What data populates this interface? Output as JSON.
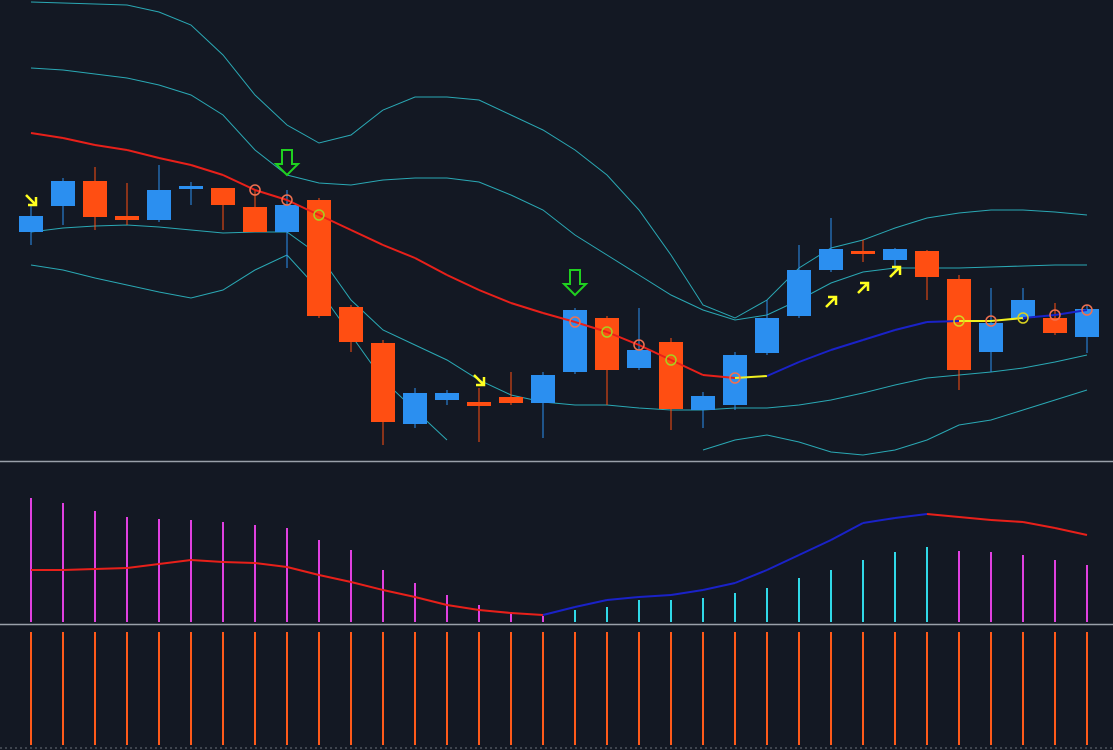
{
  "chart_data": {
    "type": "candlestick",
    "ylim": [
      0,
      460
    ],
    "up_color": "#2b8ff0",
    "down_color": "#ff4e12",
    "candles": [
      [
        228,
        255,
        215,
        244
      ],
      [
        254,
        282,
        235,
        279
      ],
      [
        279,
        293,
        230,
        243
      ],
      [
        244,
        277,
        235,
        240
      ],
      [
        240,
        295,
        238,
        270
      ],
      [
        271,
        278,
        255,
        274
      ],
      [
        272,
        272,
        230,
        255
      ],
      [
        253,
        270,
        228,
        228
      ],
      [
        228,
        270,
        192,
        255
      ],
      [
        260,
        262,
        142,
        144
      ],
      [
        153,
        155,
        108,
        118
      ],
      [
        117,
        120,
        15,
        38
      ],
      [
        36,
        72,
        32,
        67
      ],
      [
        60,
        70,
        55,
        67
      ],
      [
        58,
        72,
        18,
        54
      ],
      [
        63,
        88,
        55,
        57
      ],
      [
        57,
        88,
        22,
        85
      ],
      [
        88,
        152,
        86,
        150
      ],
      [
        142,
        144,
        55,
        90
      ],
      [
        92,
        152,
        90,
        110
      ],
      [
        118,
        122,
        30,
        51
      ],
      [
        50,
        68,
        32,
        64
      ],
      [
        55,
        108,
        50,
        105
      ],
      [
        107,
        160,
        105,
        142
      ],
      [
        144,
        215,
        142,
        190
      ],
      [
        190,
        242,
        188,
        211
      ],
      [
        209,
        220,
        198,
        206
      ],
      [
        200,
        212,
        188,
        211
      ],
      [
        209,
        210,
        160,
        183
      ],
      [
        181,
        185,
        70,
        90
      ],
      [
        108,
        172,
        88,
        137
      ],
      [
        142,
        172,
        140,
        160
      ],
      [
        142,
        157,
        125,
        127
      ],
      [
        123,
        155,
        107,
        151
      ]
    ],
    "bands": {
      "color": "#2aa8b4",
      "series": [
        {
          "values": [
            458,
            457,
            456,
            455,
            448,
            435,
            405,
            365,
            335,
            317,
            325,
            350,
            363,
            363,
            360,
            345,
            330,
            310,
            285,
            250,
            205,
            155,
            142,
            160,
            192,
            212,
            220,
            232,
            242,
            247,
            250,
            250,
            248,
            245
          ]
        },
        {
          "values": [
            392,
            390,
            386,
            382,
            375,
            365,
            345,
            310,
            285,
            277,
            275,
            280,
            282,
            282,
            278,
            265,
            250,
            225,
            205,
            185,
            165,
            150,
            140,
            145,
            160,
            177,
            188,
            192,
            192,
            192,
            193,
            194,
            195,
            195
          ]
        },
        {
          "values": [
            228,
            232,
            234,
            235,
            233,
            230,
            227,
            228,
            228,
            205,
            160,
            130,
            115,
            100,
            80,
            65,
            58,
            55,
            55,
            52,
            50,
            50,
            52,
            52,
            55,
            60,
            67,
            75,
            82,
            85,
            88,
            92,
            98,
            105
          ]
        },
        {
          "values": [
            195,
            190,
            182,
            175,
            168,
            162,
            170,
            190,
            205,
            170,
            125,
            80,
            50,
            20,
            null,
            null,
            null,
            null,
            null,
            null,
            null,
            10,
            20,
            25,
            18,
            8,
            5,
            10,
            20,
            35,
            40,
            50,
            60,
            70
          ]
        }
      ]
    },
    "ma": {
      "values": [
        327,
        322,
        315,
        310,
        302,
        295,
        285,
        270,
        260,
        245,
        230,
        215,
        202,
        185,
        170,
        157,
        147,
        138,
        128,
        115,
        100,
        85,
        82,
        84,
        98,
        110,
        120,
        130,
        138,
        139,
        139,
        142,
        145,
        150
      ],
      "segment_colors": [
        "#e8201a",
        "#e8201a",
        "#e8201a",
        "#e8201a",
        "#e8201a",
        "#e8201a",
        "#e8201a",
        "#e8201a",
        "#e8201a",
        "#e8201a",
        "#e8201a",
        "#e8201a",
        "#e8201a",
        "#e8201a",
        "#e8201a",
        "#e8201a",
        "#e8201a",
        "#e8201a",
        "#e8201a",
        "#e8201a",
        "#e8201a",
        "#e8201a",
        "#f0f020",
        "#1a22c8",
        "#1a22c8",
        "#1a22c8",
        "#1a22c8",
        "#1a22c8",
        "#1a22c8",
        "#f0f020",
        "#f0f020",
        "#1a22c8",
        "#1a22c8",
        "#1a22c8"
      ]
    },
    "circles": {
      "indices": [
        7,
        8,
        9,
        17,
        18,
        19,
        20,
        22,
        29,
        30,
        31,
        32,
        33
      ],
      "colors": [
        "#f07050",
        "#f07050",
        "#a8d020",
        "#f07050",
        "#a8d020",
        "#f07050",
        "#a8d020",
        "#f07050",
        "#d8d020",
        "#f07050",
        "#d8d020",
        "#f07050",
        "#f07050"
      ]
    },
    "down_arrows": {
      "color": "#20d020",
      "indices": [
        8,
        17
      ],
      "values": [
        285,
        165
      ]
    },
    "yellow_arrows": {
      "color": "#ffff20",
      "indices": [
        0,
        14,
        25,
        26,
        27
      ],
      "values": [
        260,
        80,
        158,
        172,
        188
      ]
    },
    "oscillator": {
      "ylim": [
        0,
        160
      ],
      "values": [
        124,
        119,
        111,
        105,
        103,
        102,
        100,
        97,
        94,
        82,
        72,
        52,
        39,
        27,
        17,
        10,
        6,
        12,
        15,
        22,
        22,
        24,
        29,
        34,
        44,
        52,
        62,
        70,
        75,
        71,
        70,
        67,
        62,
        57
      ],
      "colors": [
        "#e040e0",
        "#e040e0",
        "#e040e0",
        "#e040e0",
        "#e040e0",
        "#e040e0",
        "#e040e0",
        "#e040e0",
        "#e040e0",
        "#e040e0",
        "#e040e0",
        "#e040e0",
        "#e040e0",
        "#e040e0",
        "#e040e0",
        "#e040e0",
        "#e040e0",
        "#30d8e8",
        "#30d8e8",
        "#30d8e8",
        "#30d8e8",
        "#30d8e8",
        "#30d8e8",
        "#30d8e8",
        "#30d8e8",
        "#30d8e8",
        "#30d8e8",
        "#30d8e8",
        "#30d8e8",
        "#e040e0",
        "#e040e0",
        "#e040e0",
        "#e040e0",
        "#e040e0"
      ],
      "signal": [
        52,
        52,
        53,
        54,
        58,
        62,
        60,
        59,
        55,
        47,
        40,
        32,
        25,
        17,
        12,
        9,
        7,
        15,
        22,
        25,
        27,
        32,
        39,
        52,
        67,
        82,
        99,
        104,
        108,
        105,
        102,
        100,
        94,
        87
      ],
      "signal_colors": [
        "#e8201a",
        "#e8201a",
        "#e8201a",
        "#e8201a",
        "#e8201a",
        "#e8201a",
        "#e8201a",
        "#e8201a",
        "#e8201a",
        "#e8201a",
        "#e8201a",
        "#e8201a",
        "#e8201a",
        "#e8201a",
        "#e8201a",
        "#e8201a",
        "#1a22c8",
        "#1a22c8",
        "#1a22c8",
        "#1a22c8",
        "#1a22c8",
        "#1a22c8",
        "#1a22c8",
        "#1a22c8",
        "#1a22c8",
        "#1a22c8",
        "#1a22c8",
        "#1a22c8",
        "#e8201a",
        "#e8201a",
        "#e8201a",
        "#e8201a",
        "#e8201a",
        "#e8201a"
      ]
    },
    "volume": {
      "ylim": [
        0,
        118
      ],
      "color": "#ff5a1a",
      "values": [
        113,
        113,
        113,
        113,
        113,
        113,
        113,
        113,
        113,
        113,
        113,
        113,
        113,
        113,
        113,
        113,
        113,
        113,
        113,
        113,
        113,
        113,
        113,
        113,
        113,
        113,
        113,
        113,
        113,
        113,
        113,
        113,
        113,
        113
      ]
    }
  }
}
